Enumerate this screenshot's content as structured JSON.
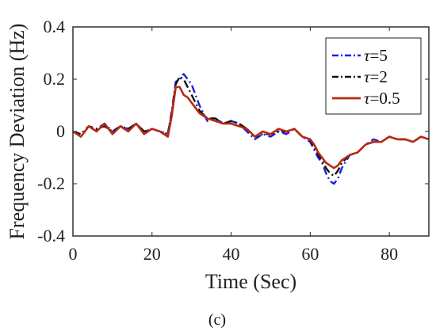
{
  "chart_data": {
    "type": "line",
    "xlabel": "Time (Sec)",
    "ylabel": "Frequency Deviation (Hz)",
    "xlim": [
      0,
      90
    ],
    "ylim": [
      -0.4,
      0.4
    ],
    "xticks": [
      "0",
      "20",
      "40",
      "60",
      "80"
    ],
    "yticks": [
      "0.4",
      "0.2",
      "0",
      "-0.2",
      "-0.4"
    ],
    "panel_label": "(c)",
    "legend_placement": "top-right",
    "series": [
      {
        "name": "τ=5",
        "legend_symbol": "τ",
        "legend_value": "=5",
        "color": "#1f1fe0",
        "style": "dashdot",
        "x": [
          0,
          2,
          4,
          6,
          8,
          10,
          12,
          14,
          16,
          18,
          20,
          22,
          24,
          25,
          26,
          27,
          28,
          29,
          30,
          32,
          34,
          36,
          38,
          40,
          42,
          44,
          46,
          48,
          50,
          52,
          54,
          56,
          58,
          60,
          61,
          62,
          63,
          64,
          65,
          66,
          67,
          68,
          70,
          72,
          74,
          76,
          78,
          80,
          82,
          84,
          86,
          88,
          90
        ],
        "y": [
          0.0,
          -0.01,
          0.02,
          0.01,
          0.03,
          0.0,
          0.02,
          0.01,
          0.03,
          0.0,
          0.01,
          0.0,
          -0.01,
          0.08,
          0.19,
          0.2,
          0.22,
          0.2,
          0.18,
          0.1,
          0.04,
          0.05,
          0.03,
          0.04,
          0.03,
          0.0,
          -0.03,
          -0.01,
          -0.02,
          0.0,
          -0.01,
          0.01,
          -0.02,
          -0.04,
          -0.07,
          -0.1,
          -0.12,
          -0.16,
          -0.19,
          -0.2,
          -0.18,
          -0.14,
          -0.09,
          -0.08,
          -0.05,
          -0.03,
          -0.04,
          -0.02,
          -0.03,
          -0.03,
          -0.04,
          -0.02,
          -0.03
        ]
      },
      {
        "name": "τ=2",
        "legend_symbol": "τ",
        "legend_value": "=2",
        "color": "#111111",
        "style": "dashdot",
        "x": [
          0,
          2,
          4,
          6,
          8,
          10,
          12,
          14,
          16,
          18,
          20,
          22,
          24,
          25,
          26,
          27,
          28,
          29,
          30,
          32,
          34,
          36,
          38,
          40,
          42,
          44,
          46,
          48,
          50,
          52,
          54,
          56,
          58,
          60,
          61,
          62,
          63,
          64,
          65,
          66,
          67,
          68,
          70,
          72,
          74,
          76,
          78,
          80,
          82,
          84,
          86,
          88,
          90
        ],
        "y": [
          0.0,
          -0.01,
          0.02,
          0.01,
          0.02,
          0.0,
          0.02,
          0.01,
          0.03,
          0.0,
          0.01,
          0.0,
          -0.01,
          0.07,
          0.18,
          0.21,
          0.2,
          0.17,
          0.14,
          0.08,
          0.05,
          0.05,
          0.03,
          0.04,
          0.03,
          0.01,
          -0.02,
          -0.01,
          -0.01,
          0.0,
          0.0,
          0.01,
          -0.02,
          -0.03,
          -0.06,
          -0.09,
          -0.11,
          -0.14,
          -0.16,
          -0.17,
          -0.15,
          -0.12,
          -0.09,
          -0.08,
          -0.05,
          -0.04,
          -0.04,
          -0.02,
          -0.03,
          -0.03,
          -0.04,
          -0.02,
          -0.03
        ]
      },
      {
        "name": "τ=0.5",
        "legend_symbol": "τ",
        "legend_value": "=0.5",
        "color": "#b82a10",
        "style": "solid",
        "x": [
          0,
          2,
          4,
          6,
          8,
          10,
          12,
          14,
          16,
          18,
          20,
          22,
          24,
          25,
          26,
          27,
          28,
          29,
          30,
          32,
          34,
          36,
          38,
          40,
          42,
          44,
          46,
          48,
          50,
          52,
          54,
          56,
          58,
          60,
          61,
          62,
          63,
          64,
          65,
          66,
          67,
          68,
          70,
          72,
          74,
          76,
          78,
          80,
          82,
          84,
          86,
          88,
          90
        ],
        "y": [
          0.0,
          -0.02,
          0.02,
          0.0,
          0.03,
          -0.01,
          0.02,
          0.0,
          0.03,
          -0.01,
          0.01,
          0.0,
          -0.02,
          0.06,
          0.17,
          0.17,
          0.14,
          0.13,
          0.11,
          0.07,
          0.05,
          0.04,
          0.03,
          0.03,
          0.02,
          0.01,
          -0.02,
          0.0,
          -0.01,
          0.01,
          0.0,
          0.01,
          -0.02,
          -0.03,
          -0.05,
          -0.08,
          -0.1,
          -0.12,
          -0.13,
          -0.14,
          -0.13,
          -0.11,
          -0.09,
          -0.08,
          -0.05,
          -0.04,
          -0.04,
          -0.02,
          -0.03,
          -0.03,
          -0.04,
          -0.02,
          -0.03
        ]
      }
    ]
  }
}
